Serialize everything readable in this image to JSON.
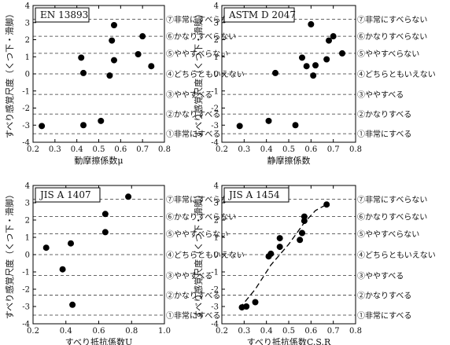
{
  "scale_labels": [
    "①非常にすべる",
    "②かなりすべる",
    "③ややすべる",
    "④どちらともいえない",
    "⑤ややすべらない",
    "⑥かなりすべらない",
    "⑦非常にすべらない"
  ],
  "y_label": "すべり感覚尺度（くつ下・滑脚）",
  "chart_data": [
    {
      "type": "scatter",
      "standard": "EN 13893",
      "xlabel": "動摩擦係数μ",
      "xlim": [
        0.2,
        0.8
      ],
      "xticks": [
        "0.2",
        "0.3",
        "0.4",
        "0.5",
        "0.6",
        "0.7",
        "0.8"
      ],
      "ylim": [
        -4,
        4
      ],
      "yticks": [
        "-4",
        "-3",
        "-2",
        "-1",
        "0",
        "1",
        "2",
        "3",
        "4"
      ],
      "grid_lines_at": [
        -3.5,
        -2.35,
        -1.2,
        0,
        1.2,
        2.2,
        3.2
      ],
      "scale_side": "right",
      "points": [
        [
          0.24,
          -3.05
        ],
        [
          0.43,
          -3.0
        ],
        [
          0.51,
          -2.75
        ],
        [
          0.42,
          0.95
        ],
        [
          0.43,
          0.05
        ],
        [
          0.55,
          -0.1
        ],
        [
          0.57,
          0.8
        ],
        [
          0.56,
          1.95
        ],
        [
          0.57,
          2.85
        ],
        [
          0.68,
          1.15
        ],
        [
          0.7,
          2.2
        ],
        [
          0.74,
          0.45
        ]
      ]
    },
    {
      "type": "scatter",
      "standard": "ASTM D 2047",
      "xlabel": "静摩擦係数",
      "xlim": [
        0.2,
        0.8
      ],
      "xticks": [
        "0.2",
        "0.3",
        "0.4",
        "0.5",
        "0.6",
        "0.7",
        "0.8"
      ],
      "ylim": [
        -4,
        4
      ],
      "yticks": [
        "-4",
        "-3",
        "-2",
        "-1",
        "0",
        "1",
        "2",
        "3",
        "4"
      ],
      "grid_lines_at": [
        -3.5,
        -2.35,
        -1.2,
        0,
        1.2,
        2.2,
        3.2
      ],
      "scale_side": "right",
      "points": [
        [
          0.28,
          -3.05
        ],
        [
          0.41,
          -2.75
        ],
        [
          0.53,
          -3.0
        ],
        [
          0.44,
          0.05
        ],
        [
          0.56,
          0.95
        ],
        [
          0.58,
          0.45
        ],
        [
          0.6,
          2.9
        ],
        [
          0.61,
          -0.1
        ],
        [
          0.62,
          0.5
        ],
        [
          0.67,
          0.85
        ],
        [
          0.68,
          1.95
        ],
        [
          0.7,
          2.2
        ],
        [
          0.74,
          1.2
        ]
      ]
    },
    {
      "type": "scatter",
      "standard": "JIS A 1407",
      "xlabel": "すべり抵抗係数U",
      "xlim": [
        0.2,
        1.0
      ],
      "xticks": [
        "0.2",
        "0.4",
        "0.6",
        "0.8",
        "1.0"
      ],
      "ylim": [
        -4,
        4
      ],
      "yticks": [
        "-4",
        "-3",
        "-2",
        "-1",
        "0",
        "1",
        "2",
        "3",
        "4"
      ],
      "grid_lines_at": [
        -3.5,
        -2.35,
        -1.2,
        0,
        1.2,
        2.2,
        3.2
      ],
      "scale_side": "right",
      "points": [
        [
          0.28,
          0.4
        ],
        [
          0.38,
          -0.85
        ],
        [
          0.43,
          0.65
        ],
        [
          0.44,
          -2.9
        ],
        [
          0.64,
          2.35
        ],
        [
          0.64,
          1.3
        ],
        [
          0.78,
          3.35
        ]
      ]
    },
    {
      "type": "scatter",
      "standard": "JIS A 1454",
      "xlabel": "すべり抵抗係数C.S.R",
      "xlim": [
        0.2,
        0.8
      ],
      "xticks": [
        "0.2",
        "0.3",
        "0.4",
        "0.5",
        "0.6",
        "0.7",
        "0.8"
      ],
      "ylim": [
        -4,
        4
      ],
      "yticks": [
        "-4",
        "-3",
        "-2",
        "-1",
        "0",
        "1",
        "2",
        "3",
        "4"
      ],
      "grid_lines_at": [
        -3.5,
        -2.35,
        -1.2,
        0,
        1.2,
        2.2,
        3.2
      ],
      "scale_side": "right",
      "points": [
        [
          0.29,
          -3.05
        ],
        [
          0.31,
          -3.0
        ],
        [
          0.35,
          -2.75
        ],
        [
          0.41,
          -0.1
        ],
        [
          0.42,
          0.05
        ],
        [
          0.46,
          0.95
        ],
        [
          0.46,
          0.45
        ],
        [
          0.55,
          0.85
        ],
        [
          0.56,
          1.25
        ],
        [
          0.57,
          1.95
        ],
        [
          0.57,
          2.2
        ],
        [
          0.67,
          2.9
        ]
      ],
      "fit_curve": [
        [
          0.28,
          -3.1
        ],
        [
          0.35,
          -2.0
        ],
        [
          0.42,
          -0.6
        ],
        [
          0.5,
          0.6
        ],
        [
          0.57,
          1.85
        ],
        [
          0.62,
          2.55
        ],
        [
          0.67,
          2.9
        ]
      ]
    }
  ]
}
